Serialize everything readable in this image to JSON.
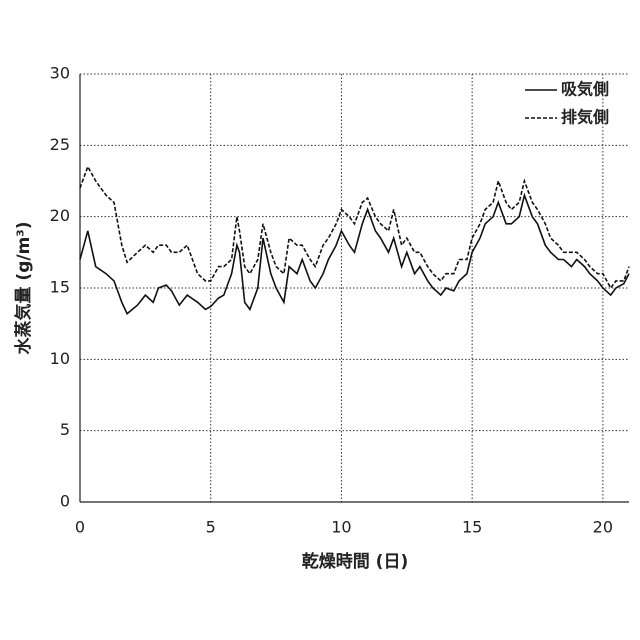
{
  "chart_data": {
    "type": "line",
    "xlabel": "乾燥時間 (日)",
    "ylabel": "水蒸気量 (g/m³)",
    "x": [
      0,
      0.3,
      0.6,
      1,
      1.3,
      1.6,
      1.8,
      2.2,
      2.5,
      2.8,
      3,
      3.3,
      3.5,
      3.8,
      4.1,
      4.5,
      4.8,
      5,
      5.3,
      5.5,
      5.8,
      6,
      6.1,
      6.3,
      6.5,
      6.8,
      7,
      7.3,
      7.5,
      7.8,
      8,
      8.3,
      8.5,
      8.8,
      9,
      9.3,
      9.5,
      9.8,
      10,
      10.3,
      10.5,
      10.8,
      11,
      11.3,
      11.5,
      11.8,
      12,
      12.3,
      12.5,
      12.8,
      13,
      13.3,
      13.5,
      13.8,
      14,
      14.3,
      14.5,
      14.8,
      15,
      15.3,
      15.5,
      15.8,
      16,
      16.3,
      16.5,
      16.8,
      17,
      17.3,
      17.5,
      17.8,
      18,
      18.3,
      18.5,
      18.8,
      19,
      19.3,
      19.5,
      19.8,
      20,
      20.3,
      20.5,
      20.8,
      21
    ],
    "series": [
      {
        "name": "吸気側",
        "color": "#111111",
        "dash": "solid",
        "values": [
          17,
          19,
          16.5,
          16,
          15.5,
          14,
          13.2,
          13.8,
          14.5,
          14,
          15,
          15.2,
          14.8,
          13.8,
          14.5,
          14,
          13.5,
          13.7,
          14.3,
          14.5,
          16,
          18,
          17.5,
          14,
          13.5,
          15,
          18.5,
          16,
          15,
          14,
          16.5,
          16,
          17,
          15.5,
          15,
          16,
          17,
          18,
          19,
          18,
          17.5,
          19.5,
          20.5,
          19,
          18.5,
          17.5,
          18.5,
          16.5,
          17.5,
          16,
          16.5,
          15.5,
          15,
          14.5,
          15,
          14.8,
          15.5,
          16,
          17.5,
          18.5,
          19.5,
          20,
          21,
          19.5,
          19.5,
          20,
          21.5,
          20,
          19.5,
          18,
          17.5,
          17,
          17,
          16.5,
          17,
          16.5,
          16,
          15.5,
          15,
          14.5,
          15,
          15.3,
          16
        ]
      },
      {
        "name": "排気側",
        "color": "#111111",
        "dash": "dashed",
        "values": [
          22,
          23.5,
          22.5,
          21.5,
          21,
          18,
          16.8,
          17.5,
          18,
          17.5,
          18,
          18,
          17.5,
          17.5,
          18,
          16,
          15.5,
          15.5,
          16.5,
          16.5,
          17,
          20,
          19,
          16.5,
          16,
          17,
          19.5,
          17.5,
          16.5,
          16,
          18.5,
          18,
          18,
          17,
          16.5,
          18,
          18.5,
          19.5,
          20.5,
          20,
          19.5,
          21,
          21.3,
          20,
          19.5,
          19,
          20.5,
          18,
          18.5,
          17.5,
          17.5,
          16.5,
          16,
          15.5,
          16,
          16,
          17,
          17,
          18.5,
          19.5,
          20.5,
          21,
          22.5,
          21,
          20.5,
          21,
          22.5,
          21,
          20.5,
          19.5,
          18.5,
          18,
          17.5,
          17.5,
          17.5,
          17,
          16.5,
          16,
          16,
          15,
          15.5,
          15.5,
          16.5
        ]
      }
    ],
    "xlim": [
      0,
      21
    ],
    "xticks": [
      0,
      5,
      10,
      15,
      20
    ],
    "ylim": [
      0,
      30
    ],
    "yticks": [
      0,
      5,
      10,
      15,
      20,
      25,
      30
    ],
    "grid": true,
    "legend": "upper right"
  }
}
